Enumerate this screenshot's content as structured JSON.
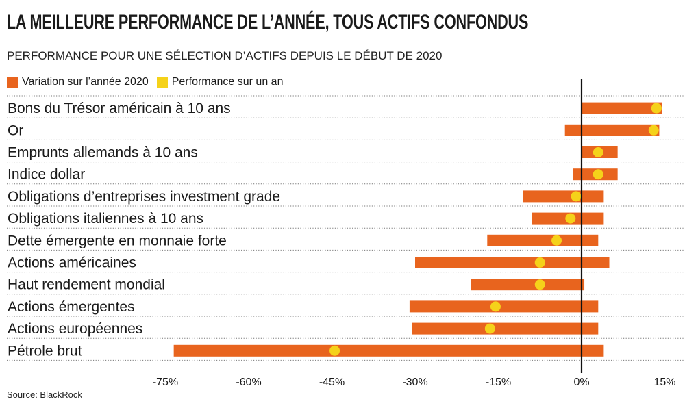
{
  "title": "LA MEILLEURE PERFORMANCE DE L’ANNÉE, TOUS ACTIFS CONFONDUS",
  "subtitle": "PERFORMANCE POUR UNE SÉLECTION D’ACTIFS DEPUIS LE DÉBUT DE 2020",
  "source": "Source: BlackRock",
  "colors": {
    "bar": "#e8641e",
    "dot": "#f5d21a",
    "grid": "#777777",
    "zero_line": "#111111"
  },
  "legend": [
    {
      "label": "Variation sur l’année 2020",
      "color": "#e8641e"
    },
    {
      "label": "Performance sur un an",
      "color": "#f5d21a"
    }
  ],
  "chart_data": {
    "type": "range-bar-dot",
    "xlim": [
      -80,
      17
    ],
    "ticks": [
      -75,
      -60,
      -45,
      -30,
      -15,
      0,
      15
    ],
    "tick_labels": [
      "-75%",
      "-60%",
      "-45%",
      "-30%",
      "-15%",
      "0%",
      "15%"
    ],
    "series": [
      {
        "name": "Variation sur l’année 2020",
        "kind": "range"
      },
      {
        "name": "Performance sur un an",
        "kind": "point"
      }
    ],
    "categories": [
      {
        "label": "Bons du Trésor américain à 10 ans",
        "range": [
          0,
          14.5
        ],
        "point": 13.5
      },
      {
        "label": "Or",
        "range": [
          -3,
          14
        ],
        "point": 13
      },
      {
        "label": "Emprunts allemands à 10 ans",
        "range": [
          0,
          6.5
        ],
        "point": 3
      },
      {
        "label": "Indice dollar",
        "range": [
          -1.5,
          6.5
        ],
        "point": 3
      },
      {
        "label": "Obligations d’entreprises investment grade",
        "range": [
          -10.5,
          4
        ],
        "point": -1
      },
      {
        "label": "Obligations italiennes à 10 ans",
        "range": [
          -9,
          4
        ],
        "point": -2
      },
      {
        "label": "Dette émergente en monnaie forte",
        "range": [
          -17,
          3
        ],
        "point": -4.5
      },
      {
        "label": "Actions américaines",
        "range": [
          -30,
          5
        ],
        "point": -7.5
      },
      {
        "label": "Haut rendement mondial",
        "range": [
          -20,
          0.5
        ],
        "point": -7.5
      },
      {
        "label": "Actions émergentes",
        "range": [
          -31,
          3
        ],
        "point": -15.5
      },
      {
        "label": "Actions européennes",
        "range": [
          -30.5,
          3
        ],
        "point": -16.5
      },
      {
        "label": "Pétrole brut",
        "range": [
          -73.5,
          4
        ],
        "point": -44.5
      }
    ]
  }
}
